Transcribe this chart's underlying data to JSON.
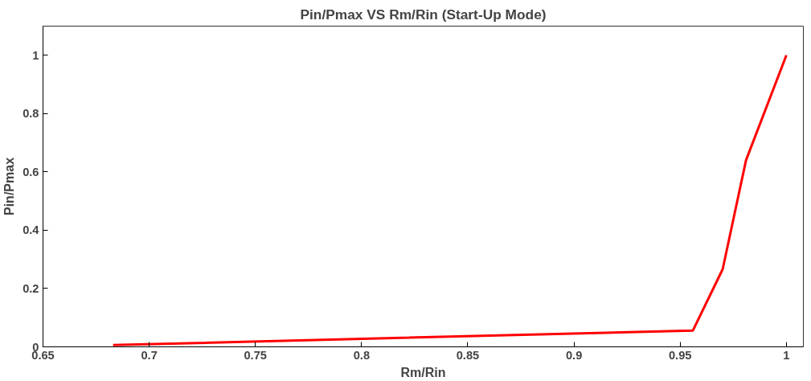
{
  "chart_data": {
    "type": "line",
    "title": "Pin/Pmax VS Rm/Rin (Start-Up Mode)",
    "xlabel": "Rm/Rin",
    "ylabel": "Pin/Pmax",
    "x": [
      0.683,
      0.956,
      0.97,
      0.981,
      1.0
    ],
    "series": [
      {
        "color": "#ff0000",
        "values": [
          0.006,
          0.056,
          0.266,
          0.64,
          1.0
        ]
      }
    ],
    "xlim": [
      0.65,
      1.008
    ],
    "ylim": [
      0,
      1.1
    ],
    "xticks": [
      0.65,
      0.7,
      0.75,
      0.8,
      0.85,
      0.9,
      0.95,
      1
    ],
    "yticks": [
      0,
      0.2,
      0.4,
      0.6,
      0.8,
      1
    ],
    "marker": "none",
    "line_style": "solid"
  }
}
